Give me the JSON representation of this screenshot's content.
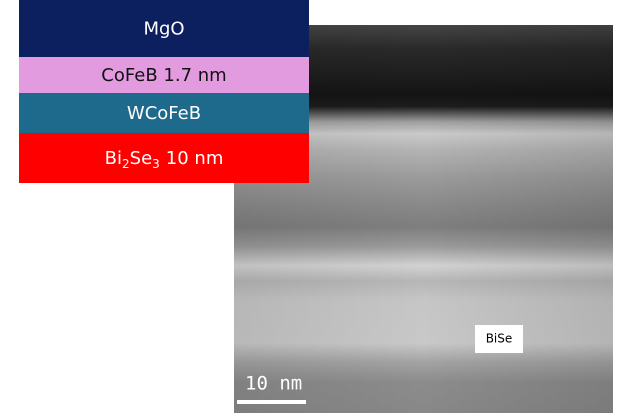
{
  "stack": {
    "layers": [
      {
        "label": "MgO",
        "color": "#0c1f5e"
      },
      {
        "label": "CoFeB 1.7 nm",
        "color": "#e39be0"
      },
      {
        "label": "WCoFeB",
        "color": "#1e6a8c"
      },
      {
        "label_parts": [
          "Bi",
          "2",
          "Se",
          "3",
          "10 nm"
        ],
        "color": "#ff0000"
      }
    ]
  },
  "image": {
    "region_label": "BiSe",
    "scale_bar": "10 nm"
  }
}
